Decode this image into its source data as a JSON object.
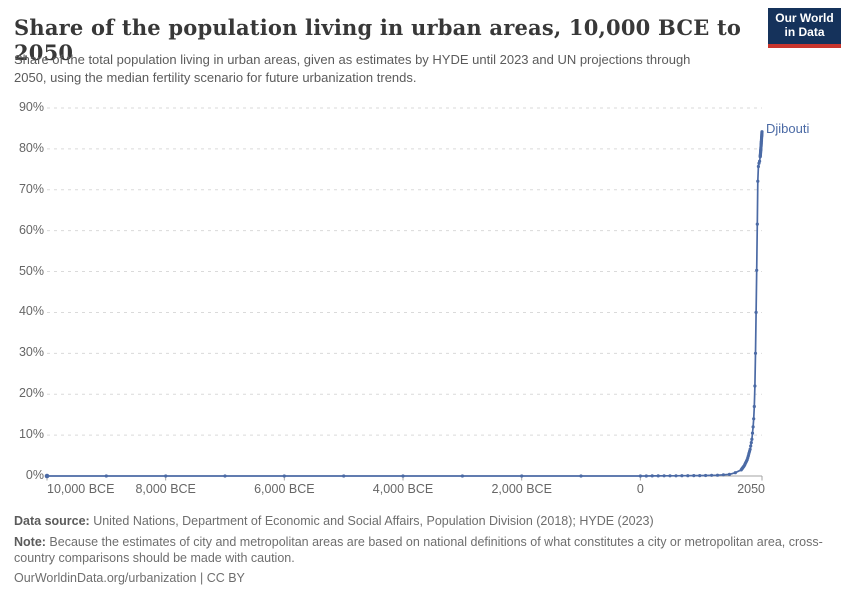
{
  "header": {
    "title": "Share of the population living in urban areas, 10,000 BCE to 2050",
    "subtitle": "Share of the total population living in urban areas, given as estimates by HYDE until 2023 and UN projections through 2050, using the median fertility scenario for future urbanization trends.",
    "logo": {
      "line1": "Our World",
      "line2": "in Data",
      "bg_color": "#15325b",
      "bar_color": "#c9352d"
    }
  },
  "footer": {
    "data_source_label": "Data source:",
    "data_source_text": " United Nations, Department of Economic and Social Affairs, Population Division (2018); HYDE (2023)",
    "note_label": "Note:",
    "note_text": " Because the estimates of city and metropolitan areas are based on national definitions of what constitutes a city or metropolitan area, cross-country comparisons should be made with caution.",
    "citation": "OurWorldinData.org/urbanization | CC BY"
  },
  "chart_data": {
    "type": "line",
    "title": "Share of the population living in urban areas, 10,000 BCE to 2050",
    "xlabel": "",
    "ylabel": "",
    "x_domain": [
      -10000,
      2050
    ],
    "y_domain": [
      0,
      90
    ],
    "grid": "dashed-horizontal",
    "y_ticks": [
      0,
      10,
      20,
      30,
      40,
      50,
      60,
      70,
      80,
      90
    ],
    "y_tick_suffix": "%",
    "x_ticks": [
      {
        "year": -10000,
        "label": "10,000 BCE",
        "align": "left"
      },
      {
        "year": -8000,
        "label": "8,000 BCE",
        "align": "center"
      },
      {
        "year": -6000,
        "label": "6,000 BCE",
        "align": "center"
      },
      {
        "year": -4000,
        "label": "4,000 BCE",
        "align": "center"
      },
      {
        "year": -2000,
        "label": "2,000 BCE",
        "align": "center"
      },
      {
        "year": 0,
        "label": "0",
        "align": "center"
      },
      {
        "year": 2050,
        "label": "2050",
        "align": "right"
      }
    ],
    "series": [
      {
        "name": "Djibouti",
        "color": "#4b6aa5",
        "anchors": [
          [
            -10000,
            0
          ],
          [
            -1000,
            0
          ],
          [
            0,
            0
          ],
          [
            500,
            0.05
          ],
          [
            1000,
            0.1
          ],
          [
            1300,
            0.2
          ],
          [
            1500,
            0.4
          ],
          [
            1600,
            0.8
          ],
          [
            1700,
            1.5
          ],
          [
            1750,
            2.5
          ],
          [
            1800,
            4
          ],
          [
            1850,
            6.5
          ],
          [
            1880,
            9
          ],
          [
            1900,
            12
          ],
          [
            1910,
            14
          ],
          [
            1920,
            17
          ],
          [
            1930,
            22
          ],
          [
            1940,
            30
          ],
          [
            1950,
            40
          ],
          [
            1955,
            45
          ],
          [
            1960,
            50.3
          ],
          [
            1965,
            56
          ],
          [
            1970,
            61.6
          ],
          [
            1975,
            67
          ],
          [
            1980,
            72.1
          ],
          [
            1985,
            74.5
          ],
          [
            1990,
            75.7
          ],
          [
            1995,
            76.2
          ],
          [
            2000,
            76.5
          ],
          [
            2005,
            76.8
          ],
          [
            2010,
            77
          ],
          [
            2015,
            77.5
          ],
          [
            2020,
            78.1
          ],
          [
            2023,
            78.6
          ],
          [
            2025,
            79
          ],
          [
            2030,
            79.9
          ],
          [
            2035,
            80.9
          ],
          [
            2040,
            81.9
          ],
          [
            2045,
            83
          ],
          [
            2050,
            84.2
          ]
        ],
        "dot_sampling": [
          [
            -10000,
            -1000,
            1000
          ],
          [
            0,
            1700,
            100
          ],
          [
            1710,
            2020,
            10
          ],
          [
            2021,
            2050,
            1
          ]
        ]
      }
    ],
    "annotations": [
      {
        "text": "Djibouti",
        "color": "#4b6aa5"
      }
    ]
  }
}
